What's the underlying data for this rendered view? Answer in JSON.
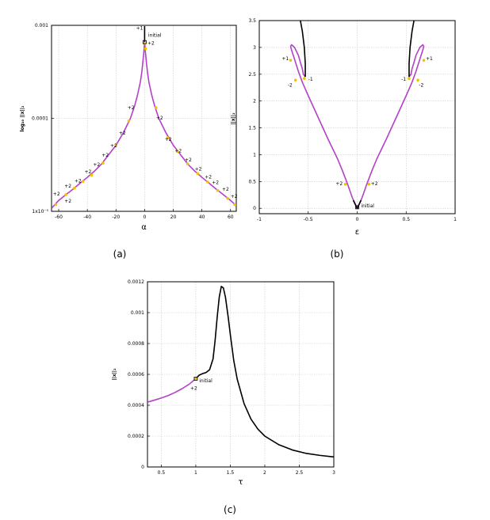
{
  "chart_data": [
    {
      "type": "line",
      "panel_label": "(a)",
      "xlabel": "α",
      "ylabel": "log₁₀ ||x||₂",
      "xlim": [
        -65,
        64
      ],
      "ylim": [
        1e-05,
        0.001
      ],
      "y_scale": "log",
      "grid": true,
      "xticks": [
        -60,
        -40,
        -20,
        0,
        20,
        40,
        60
      ],
      "xtick_labels": [
        "-60",
        "-40",
        "-20",
        "0",
        "20",
        "40",
        "60"
      ],
      "yticks": [
        1e-05,
        0.0001,
        0.001
      ],
      "ytick_labels": [
        "1x10⁻⁵",
        "0.0001",
        "0.001"
      ],
      "series": [
        {
          "color": "#b341c9",
          "x": [
            -65,
            -60,
            -55,
            -50,
            -45,
            -40,
            -35,
            -30,
            -25,
            -20,
            -15,
            -10,
            -7,
            -5,
            -3,
            -2,
            -1.2,
            -0.6,
            0
          ],
          "y": [
            1.08e-05,
            1.31e-05,
            1.51e-05,
            1.73e-05,
            2.01e-05,
            2.32e-05,
            2.71e-05,
            3.24e-05,
            4.08e-05,
            5.14e-05,
            6.93e-05,
            9.93e-05,
            0.000136,
            0.000177,
            0.000245,
            0.000311,
            0.000407,
            0.000506,
            0.00066
          ]
        },
        {
          "color": "#b341c9",
          "x": [
            0,
            0.6,
            1.2,
            2,
            3,
            5,
            7,
            10,
            15,
            20,
            25,
            30,
            35,
            40,
            45,
            50,
            55,
            60,
            64
          ],
          "y": [
            0.00066,
            0.000506,
            0.000407,
            0.000311,
            0.000245,
            0.000177,
            0.000136,
            9.93e-05,
            6.93e-05,
            5.14e-05,
            4.08e-05,
            3.24e-05,
            2.71e-05,
            2.32e-05,
            2.01e-05,
            1.73e-05,
            1.51e-05,
            1.31e-05,
            1.15e-05
          ]
        },
        {
          "color": "#000000",
          "x": [
            0,
            0,
            0
          ],
          "y": [
            0.00066,
            0.00075,
            0.00098
          ]
        }
      ],
      "points": [
        {
          "x": -62,
          "y": 1.18e-05
        },
        {
          "x": -55,
          "y": 1.51e-05
        },
        {
          "x": -49,
          "y": 1.78e-05
        },
        {
          "x": -43,
          "y": 2.1e-05
        },
        {
          "x": -37,
          "y": 2.45e-05
        },
        {
          "x": -29,
          "y": 3.3e-05
        },
        {
          "x": -20,
          "y": 5.2e-05
        },
        {
          "x": -11,
          "y": 9.4e-05
        },
        {
          "x": -0.3,
          "y": 0.00064
        },
        {
          "x": 0.6,
          "y": 0.00056
        },
        {
          "x": 8,
          "y": 0.00013
        },
        {
          "x": 16,
          "y": 6.2e-05
        },
        {
          "x": 23,
          "y": 4.4e-05
        },
        {
          "x": 30,
          "y": 3.24e-05
        },
        {
          "x": 37,
          "y": 2.55e-05
        },
        {
          "x": 44,
          "y": 2.07e-05
        },
        {
          "x": 51,
          "y": 1.68e-05
        },
        {
          "x": 58,
          "y": 1.38e-05
        },
        {
          "x": 63,
          "y": 1.18e-05
        }
      ],
      "annotations": [
        {
          "text": "+1",
          "x": -6,
          "y": 0.0009
        },
        {
          "text": "initial",
          "x": 2.5,
          "y": 0.00075
        },
        {
          "text": "+2",
          "x": 2,
          "y": 0.00062
        },
        {
          "text": "+2",
          "x": -12,
          "y": 0.000125
        },
        {
          "text": "+2",
          "x": 8,
          "y": 9.7e-05
        },
        {
          "text": "+2",
          "x": -18,
          "y": 6.7e-05
        },
        {
          "text": "+2",
          "x": 14,
          "y": 5.7e-05
        },
        {
          "text": "+2",
          "x": -24,
          "y": 4.9e-05
        },
        {
          "text": "+2",
          "x": 21,
          "y": 4.3e-05
        },
        {
          "text": "+2",
          "x": -30,
          "y": 3.85e-05
        },
        {
          "text": "+2",
          "x": 28,
          "y": 3.45e-05
        },
        {
          "text": "+2",
          "x": -36,
          "y": 3.05e-05
        },
        {
          "text": "+2",
          "x": 35,
          "y": 2.75e-05
        },
        {
          "text": "+2",
          "x": -42,
          "y": 2.55e-05
        },
        {
          "text": "+2",
          "x": 42,
          "y": 2.25e-05
        },
        {
          "text": "+2",
          "x": -49,
          "y": 2.05e-05
        },
        {
          "text": "+2",
          "x": 47,
          "y": 1.97e-05
        },
        {
          "text": "+2",
          "x": -56,
          "y": 1.8e-05
        },
        {
          "text": "+2",
          "x": 54,
          "y": 1.67e-05
        },
        {
          "text": "+2",
          "x": -64,
          "y": 1.48e-05
        },
        {
          "text": "+2",
          "x": -56,
          "y": 1.24e-05
        },
        {
          "text": "+2",
          "x": 60,
          "y": 1.4e-05
        }
      ]
    },
    {
      "type": "line",
      "panel_label": "(b)",
      "xlabel": "ε",
      "ylabel": "||x||₂",
      "xlim": [
        -1,
        1
      ],
      "ylim": [
        -0.1,
        3.5
      ],
      "grid": true,
      "xticks": [
        -1,
        -0.5,
        0,
        0.5,
        1
      ],
      "xtick_labels": [
        "-1",
        "-0.5",
        "0",
        "0.5",
        "1"
      ],
      "yticks": [
        0,
        0.5,
        1,
        1.5,
        2,
        2.5,
        3,
        3.5
      ],
      "ytick_labels": [
        "0",
        "0.5",
        "1",
        "1.5",
        "2",
        "2.5",
        "3",
        "3.5"
      ],
      "series": [
        {
          "color": "#b341c9",
          "x": [
            0,
            -0.05,
            -0.1,
            -0.15,
            -0.2,
            -0.3,
            -0.4,
            -0.5,
            -0.56,
            -0.6,
            -0.64,
            -0.67,
            -0.68,
            -0.67,
            -0.64,
            -0.6,
            -0.58,
            -0.56,
            -0.55,
            -0.53
          ],
          "y": [
            0,
            0.2,
            0.46,
            0.7,
            0.92,
            1.3,
            1.7,
            2.1,
            2.35,
            2.55,
            2.78,
            2.95,
            3.02,
            3.05,
            3.0,
            2.85,
            2.72,
            2.6,
            2.5,
            2.45
          ]
        },
        {
          "color": "#b341c9",
          "x": [
            0,
            0.05,
            0.1,
            0.15,
            0.2,
            0.3,
            0.4,
            0.5,
            0.56,
            0.6,
            0.64,
            0.67,
            0.68,
            0.67,
            0.64,
            0.6,
            0.58,
            0.56,
            0.55,
            0.53
          ],
          "y": [
            0,
            0.2,
            0.46,
            0.7,
            0.92,
            1.3,
            1.7,
            2.1,
            2.35,
            2.55,
            2.78,
            2.95,
            3.02,
            3.05,
            3.0,
            2.85,
            2.72,
            2.6,
            2.5,
            2.45
          ]
        },
        {
          "color": "#000000",
          "x": [
            -0.53,
            -0.53,
            -0.54,
            -0.56,
            -0.58
          ],
          "y": [
            2.45,
            2.7,
            3.0,
            3.3,
            3.5
          ]
        },
        {
          "color": "#000000",
          "x": [
            0.53,
            0.53,
            0.54,
            0.56,
            0.58
          ],
          "y": [
            2.45,
            2.7,
            3.0,
            3.3,
            3.5
          ]
        },
        {
          "color": "#000000",
          "x": [
            -0.04,
            0,
            0.04
          ],
          "y": [
            0.15,
            0,
            0.15
          ]
        }
      ],
      "points": [
        {
          "x": -0.68,
          "y": 2.76
        },
        {
          "x": -0.63,
          "y": 2.39
        },
        {
          "x": -0.54,
          "y": 2.42
        },
        {
          "x": 0.53,
          "y": 2.42
        },
        {
          "x": 0.62,
          "y": 2.39
        },
        {
          "x": 0.68,
          "y": 2.76
        },
        {
          "x": -0.12,
          "y": 0.45
        },
        {
          "x": 0.12,
          "y": 0.45
        }
      ],
      "annotations": [
        {
          "text": "+1",
          "x": -0.77,
          "y": 2.76
        },
        {
          "text": "-2",
          "x": -0.71,
          "y": 2.27
        },
        {
          "text": "-1",
          "x": -0.5,
          "y": 2.38
        },
        {
          "text": "-1",
          "x": 0.45,
          "y": 2.38
        },
        {
          "text": "-2",
          "x": 0.63,
          "y": 2.27
        },
        {
          "text": "+1",
          "x": 0.7,
          "y": 2.76
        },
        {
          "text": "+2",
          "x": -0.22,
          "y": 0.43
        },
        {
          "text": "+2",
          "x": 0.14,
          "y": 0.43
        },
        {
          "text": "initial",
          "x": 0.04,
          "y": 0.02
        }
      ]
    },
    {
      "type": "line",
      "panel_label": "(c)",
      "xlabel": "τ",
      "ylabel": "||x||₂",
      "xlim": [
        0.3,
        3
      ],
      "ylim": [
        0,
        0.0012
      ],
      "grid": true,
      "xticks": [
        0.5,
        1,
        1.5,
        2,
        2.5,
        3
      ],
      "xtick_labels": [
        "0.5",
        "1",
        "1.5",
        "2",
        "2.5",
        "3"
      ],
      "yticks": [
        0,
        0.0002,
        0.0004,
        0.0006,
        0.0008,
        0.001,
        0.0012
      ],
      "ytick_labels": [
        "0",
        "0.0002",
        "0.0004",
        "0.0006",
        "0.0008",
        "0.001",
        "0.0012"
      ],
      "series": [
        {
          "color": "#b341c9",
          "x": [
            0.3,
            0.4,
            0.5,
            0.6,
            0.7,
            0.8,
            0.9,
            1.0
          ],
          "y": [
            0.00042,
            0.000433,
            0.000447,
            0.000463,
            0.000483,
            0.000507,
            0.000535,
            0.000572
          ]
        },
        {
          "color": "#000000",
          "x": [
            1.0,
            1.05,
            1.1,
            1.15,
            1.2,
            1.25,
            1.28,
            1.31,
            1.34,
            1.37,
            1.4,
            1.43,
            1.47,
            1.5,
            1.55,
            1.6,
            1.7,
            1.8,
            1.9,
            2.0,
            2.2,
            2.4,
            2.6,
            2.8,
            3.0
          ],
          "y": [
            0.000572,
            0.000595,
            0.000605,
            0.000612,
            0.00063,
            0.0007,
            0.00082,
            0.00097,
            0.0011,
            0.00117,
            0.00116,
            0.0011,
            0.00097,
            0.00086,
            0.00069,
            0.00057,
            0.00041,
            0.00031,
            0.000245,
            0.0002,
            0.000145,
            0.00011,
            8.8e-05,
            7.5e-05,
            6.5e-05
          ]
        }
      ],
      "points": [
        {
          "x": 1.0,
          "y": 0.000572
        }
      ],
      "annotations": [
        {
          "text": "initial",
          "x": 1.05,
          "y": 0.000548
        },
        {
          "text": "+2",
          "x": 0.92,
          "y": 0.0005
        }
      ]
    }
  ]
}
